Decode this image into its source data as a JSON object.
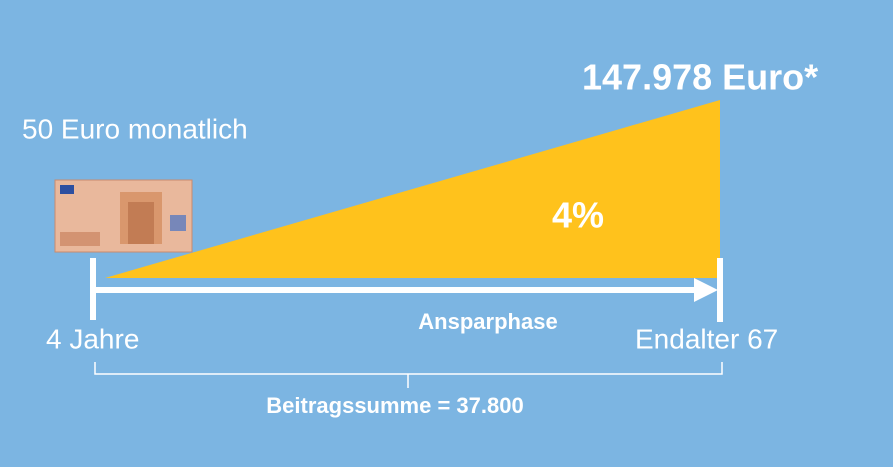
{
  "savings": {
    "monthly": "50 Euro monatlich",
    "final_amount": "147.978 Euro*",
    "rate": "4%"
  },
  "timeline": {
    "phase": "Ansparphase",
    "start": "4 Jahre",
    "end": "Endalter 67",
    "total": "Beitragssumme = 37.800"
  }
}
